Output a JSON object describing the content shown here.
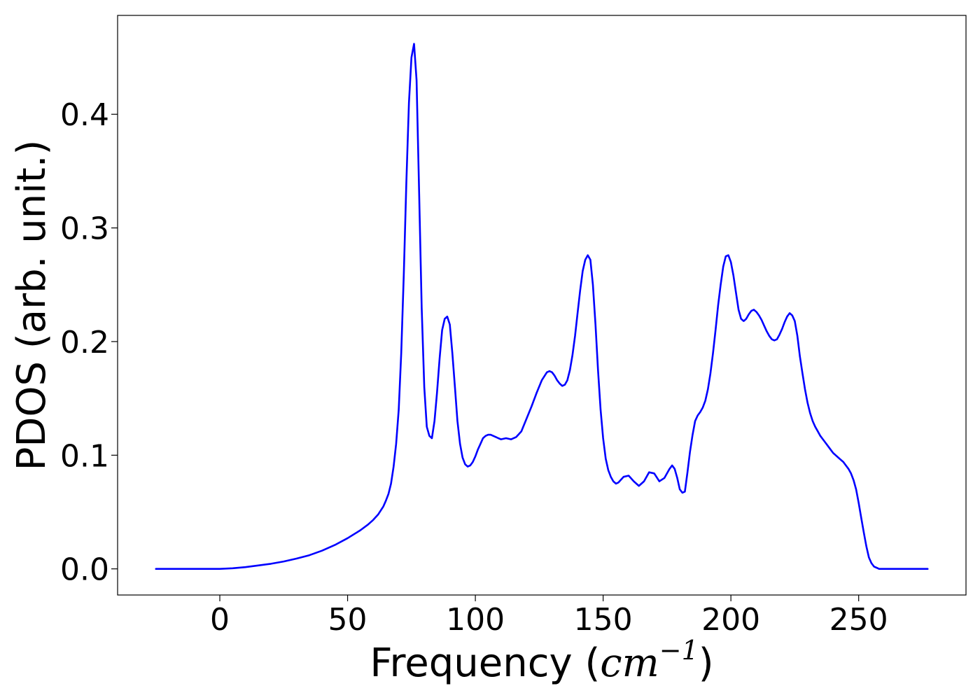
{
  "chart_data": {
    "type": "line",
    "title": "",
    "xlabel": {
      "main": "Frequency (",
      "unit": "cm",
      "exponent": "−1",
      "close": ")"
    },
    "ylabel": "PDOS (arb. unit.)",
    "xlim": [
      -40,
      292
    ],
    "ylim": [
      -0.023,
      0.487
    ],
    "x_ticks": [
      0,
      50,
      100,
      150,
      200,
      250
    ],
    "x_tick_labels": [
      "0",
      "50",
      "100",
      "150",
      "200",
      "250"
    ],
    "y_ticks": [
      0.0,
      0.1,
      0.2,
      0.3,
      0.4
    ],
    "y_tick_labels": [
      "0.0",
      "0.1",
      "0.2",
      "0.3",
      "0.4"
    ],
    "grid": false,
    "legend": "none",
    "line_color": "#0000ff",
    "series": [
      {
        "x": [
          -25,
          0,
          5,
          10,
          15,
          20,
          25,
          30,
          35,
          40,
          45,
          50,
          55,
          58,
          60,
          62,
          64,
          65,
          66,
          67,
          68,
          69,
          70,
          71,
          72,
          73,
          74,
          75,
          76,
          77,
          78,
          79,
          80,
          81,
          82,
          83,
          84,
          85,
          86,
          87,
          88,
          89,
          90,
          91,
          92,
          93,
          94,
          95,
          96,
          97,
          98,
          99,
          100,
          101,
          102,
          103,
          104,
          105,
          106,
          107,
          108,
          109,
          110,
          112,
          114,
          116,
          118,
          120,
          122,
          124,
          126,
          128,
          129,
          130,
          131,
          132,
          133,
          134,
          135,
          136,
          137,
          138,
          139,
          140,
          141,
          142,
          143,
          144,
          145,
          146,
          147,
          148,
          149,
          150,
          151,
          152,
          153,
          154,
          155,
          156,
          158,
          160,
          162,
          164,
          166,
          168,
          170,
          172,
          174,
          176,
          177,
          178,
          179,
          180,
          181,
          182,
          183,
          184,
          185,
          186,
          187,
          188,
          189,
          190,
          191,
          192,
          193,
          194,
          195,
          196,
          197,
          198,
          199,
          200,
          201,
          202,
          203,
          204,
          205,
          206,
          207,
          208,
          209,
          210,
          211,
          212,
          213,
          214,
          215,
          216,
          217,
          218,
          219,
          220,
          221,
          222,
          223,
          224,
          225,
          226,
          227,
          228,
          229,
          230,
          231,
          232,
          233,
          234,
          235,
          236,
          237,
          238,
          239,
          240,
          241,
          242,
          243,
          244,
          245,
          246,
          247,
          248,
          249,
          250,
          251,
          252,
          253,
          254,
          255,
          256,
          257,
          258,
          260,
          265,
          277
        ],
        "y": [
          0.0,
          0.0,
          0.0005,
          0.0015,
          0.003,
          0.0045,
          0.0065,
          0.009,
          0.012,
          0.016,
          0.021,
          0.027,
          0.034,
          0.039,
          0.043,
          0.048,
          0.055,
          0.06,
          0.066,
          0.075,
          0.09,
          0.11,
          0.14,
          0.19,
          0.26,
          0.34,
          0.41,
          0.45,
          0.462,
          0.43,
          0.33,
          0.23,
          0.16,
          0.125,
          0.117,
          0.115,
          0.13,
          0.155,
          0.185,
          0.21,
          0.22,
          0.222,
          0.215,
          0.19,
          0.16,
          0.13,
          0.11,
          0.098,
          0.092,
          0.09,
          0.091,
          0.094,
          0.099,
          0.105,
          0.11,
          0.115,
          0.117,
          0.118,
          0.118,
          0.117,
          0.116,
          0.115,
          0.114,
          0.115,
          0.114,
          0.116,
          0.121,
          0.132,
          0.143,
          0.155,
          0.166,
          0.173,
          0.174,
          0.173,
          0.17,
          0.166,
          0.163,
          0.161,
          0.162,
          0.166,
          0.175,
          0.188,
          0.205,
          0.225,
          0.245,
          0.262,
          0.272,
          0.276,
          0.272,
          0.25,
          0.215,
          0.175,
          0.14,
          0.115,
          0.097,
          0.087,
          0.081,
          0.077,
          0.075,
          0.076,
          0.081,
          0.082,
          0.077,
          0.073,
          0.077,
          0.085,
          0.084,
          0.077,
          0.08,
          0.088,
          0.091,
          0.088,
          0.08,
          0.07,
          0.067,
          0.068,
          0.085,
          0.103,
          0.118,
          0.13,
          0.135,
          0.138,
          0.142,
          0.148,
          0.158,
          0.172,
          0.19,
          0.21,
          0.232,
          0.25,
          0.266,
          0.275,
          0.276,
          0.27,
          0.258,
          0.243,
          0.228,
          0.22,
          0.218,
          0.22,
          0.224,
          0.227,
          0.228,
          0.226,
          0.223,
          0.219,
          0.214,
          0.209,
          0.205,
          0.202,
          0.201,
          0.202,
          0.206,
          0.211,
          0.217,
          0.222,
          0.225,
          0.223,
          0.218,
          0.205,
          0.187,
          0.172,
          0.158,
          0.146,
          0.137,
          0.13,
          0.125,
          0.121,
          0.117,
          0.114,
          0.111,
          0.108,
          0.105,
          0.102,
          0.1,
          0.098,
          0.096,
          0.094,
          0.091,
          0.088,
          0.084,
          0.078,
          0.07,
          0.058,
          0.045,
          0.032,
          0.02,
          0.01,
          0.005,
          0.002,
          0.001,
          0.0,
          0.0,
          0.0,
          0.0
        ]
      }
    ]
  }
}
